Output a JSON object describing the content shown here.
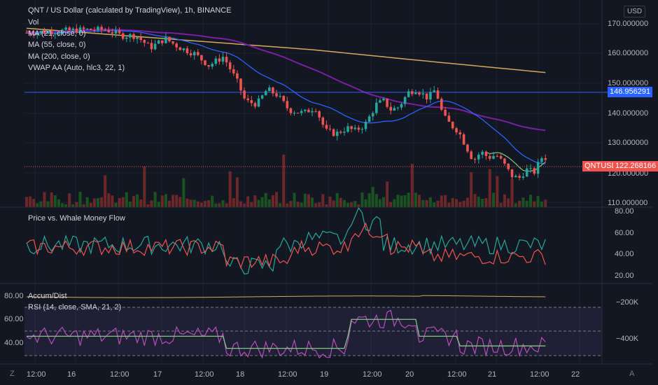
{
  "header": {
    "symbol_title": "QNT / US Dollar (calculated by TradingView), 1h, BINANCE",
    "indicators": [
      "Vol",
      "MA (21, close, 0)",
      "MA (55, close, 0)",
      "MA (200, close, 0)",
      "VWAP AA (Auto, hlc3, 22, 1)"
    ],
    "currency_button": "USD"
  },
  "price_axis": {
    "ticks": [
      "170.000000",
      "160.000000",
      "150.000000",
      "140.000000",
      "130.000000",
      "120.000000",
      "110.000000"
    ],
    "horizontal_line_label": "146.956291",
    "last_price_symbol": "QNTUSD",
    "last_price_value": "122.268166"
  },
  "whale_pane": {
    "title": "Price vs. Whale Money Flow",
    "ticks": [
      "80.00",
      "60.00",
      "40.00",
      "20.00"
    ]
  },
  "lower_pane": {
    "accum_title": "Accum/Dist",
    "rsi_title": "RSI (14, close, SMA, 21, 2)",
    "left_ticks": [
      "80.00",
      "60.00",
      "40.00"
    ],
    "right_ticks": [
      "−200K",
      "−400K"
    ]
  },
  "time_axis": {
    "ticks": [
      "12:00",
      "16",
      "12:00",
      "17",
      "12:00",
      "18",
      "12:00",
      "19",
      "12:00",
      "20",
      "12:00",
      "21",
      "12:00",
      "22"
    ]
  },
  "corners": {
    "bottom_left": "Z",
    "bottom_right": "A"
  },
  "colors": {
    "background": "#131722",
    "up": "#26a69a",
    "down": "#ef5350",
    "ma21": "#2962ff",
    "ma55": "#7b1fa2",
    "ma200": "#d4a85a",
    "hline": "#2962ff",
    "rsi": "#b84fb8",
    "rsi_ma": "#81c784"
  }
}
